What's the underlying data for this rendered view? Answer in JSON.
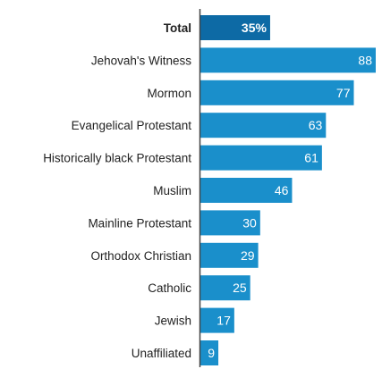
{
  "chart_data": {
    "type": "bar",
    "orientation": "horizontal",
    "categories": [
      "Total",
      "Jehovah's Witness",
      "Mormon",
      "Evangelical Protestant",
      "Historically black Protestant",
      "Muslim",
      "Mainline Protestant",
      "Orthodox Christian",
      "Catholic",
      "Jewish",
      "Unaffiliated"
    ],
    "values": [
      35,
      88,
      77,
      63,
      61,
      46,
      30,
      29,
      25,
      17,
      9
    ],
    "value_labels": [
      "35%",
      "88",
      "77",
      "63",
      "61",
      "46",
      "30",
      "29",
      "25",
      "17",
      "9"
    ],
    "highlight_category": "Total",
    "xlim": [
      0,
      100
    ],
    "grid": false,
    "legend": "none",
    "colors": {
      "bar": "#1a8fcb",
      "highlight": "#0d6aa5",
      "axis": "#444444"
    }
  }
}
